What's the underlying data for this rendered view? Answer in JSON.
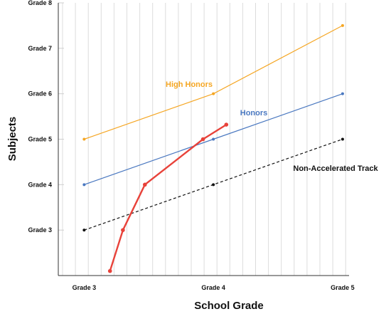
{
  "chart_data": {
    "type": "line",
    "xlabel": "School Grade",
    "ylabel": "Subjects",
    "x_tick_labels": [
      "Grade 3",
      "Grade 4",
      "Grade 5"
    ],
    "x_tick_values": [
      3,
      4,
      5
    ],
    "y_tick_labels": [
      "Grade 3",
      "Grade 4",
      "Grade 5",
      "Grade 6",
      "Grade 7",
      "Grade 8"
    ],
    "y_tick_values": [
      3,
      4,
      5,
      6,
      7,
      8
    ],
    "xlim": [
      2.8,
      5.05
    ],
    "ylim": [
      2.0,
      8.0
    ],
    "grid": "vertical",
    "series": [
      {
        "name": "High Honors",
        "color": "#f5a623",
        "style": "solid",
        "x": [
          3,
          4,
          5
        ],
        "y": [
          5.0,
          6.0,
          7.5
        ]
      },
      {
        "name": "Honors",
        "color": "#4a78c0",
        "style": "solid",
        "x": [
          3,
          4,
          5
        ],
        "y": [
          4.0,
          5.0,
          6.0
        ]
      },
      {
        "name": "Non-Accelerated Track",
        "color": "#111111",
        "style": "dashed",
        "x": [
          3,
          4,
          5
        ],
        "y": [
          3.0,
          4.0,
          5.0
        ]
      },
      {
        "color": "#e8423a",
        "style": "solid",
        "x": [
          3.2,
          3.3,
          3.47,
          3.92,
          4.1
        ],
        "y": [
          2.1,
          3.0,
          4.0,
          5.0,
          5.32
        ]
      }
    ]
  }
}
